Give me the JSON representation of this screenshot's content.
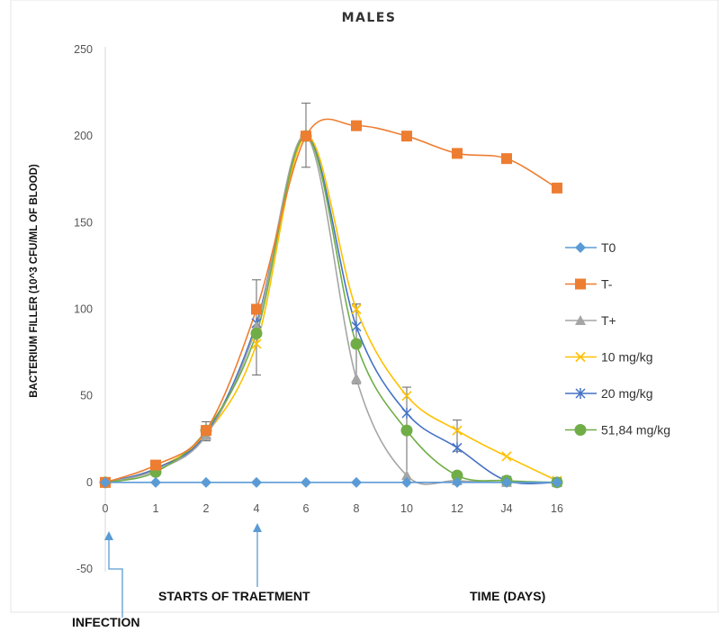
{
  "chart_data": {
    "type": "line",
    "title": "MALES",
    "ylabel": "BACTERIUM FILLER  (10^3 CFU/ML OF BLOOD)",
    "xlabel": "TIME (DAYS)",
    "ylim": [
      -50,
      250
    ],
    "y_ticks": [
      -50,
      0,
      50,
      100,
      150,
      200,
      250
    ],
    "x_ticks": [
      0,
      1,
      2,
      4,
      6,
      8,
      10,
      12,
      14,
      16
    ],
    "x_tick_labels": [
      "0",
      "1",
      "2",
      "4",
      "6",
      "8",
      "10",
      "12",
      "J4",
      "16"
    ],
    "grid": false,
    "legend_position": "right",
    "annotations": {
      "treatment": "STARTS OF TRAETMENT",
      "infection": "INFECTION",
      "treatment_day": 4,
      "infection_day": 0
    },
    "series": [
      {
        "name": "T0",
        "color": "#5b9bd5",
        "marker": "diamond",
        "x": [
          0,
          1,
          2,
          4,
          6,
          8,
          10,
          12,
          14,
          16
        ],
        "values": [
          0,
          0,
          0,
          0,
          0,
          0,
          0,
          0,
          0,
          0
        ]
      },
      {
        "name": "T-",
        "color": "#ed7d31",
        "marker": "square",
        "x": [
          0,
          1,
          2,
          4,
          6,
          8,
          10,
          12,
          14,
          16
        ],
        "values": [
          0,
          10,
          30,
          100,
          200,
          206,
          200,
          190,
          187,
          170
        ]
      },
      {
        "name": "T+",
        "color": "#a5a5a5",
        "marker": "triangle",
        "x": [
          0,
          1,
          2,
          4,
          6,
          8,
          10,
          12,
          14,
          16
        ],
        "values": [
          0,
          7,
          27,
          90,
          200,
          60,
          4,
          1,
          0,
          0
        ]
      },
      {
        "name": "10 mg/kg",
        "color": "#ffc000",
        "marker": "x",
        "x": [
          0,
          1,
          2,
          4,
          6,
          8,
          10,
          12,
          14,
          16
        ],
        "values": [
          0,
          8,
          28,
          80,
          200,
          100,
          50,
          30,
          15,
          1
        ]
      },
      {
        "name": "20 mg/kg",
        "color": "#4472c4",
        "marker": "star",
        "x": [
          0,
          1,
          2,
          4,
          6,
          8,
          10,
          12,
          14,
          16
        ],
        "values": [
          0,
          8,
          28,
          92,
          200,
          90,
          40,
          20,
          1,
          0
        ]
      },
      {
        "name": "51,84 mg/kg",
        "color": "#70ad47",
        "marker": "circle",
        "x": [
          0,
          1,
          2,
          4,
          6,
          8,
          10,
          12,
          14,
          16
        ],
        "values": [
          0,
          6,
          30,
          86,
          200,
          80,
          30,
          4,
          1,
          0
        ]
      }
    ],
    "error_bars": [
      {
        "x": 1,
        "low": 5,
        "high": 12
      },
      {
        "x": 2,
        "low": 24,
        "high": 35
      },
      {
        "x": 4,
        "low": 62,
        "high": 117
      },
      {
        "x": 6,
        "low": 182,
        "high": 219
      },
      {
        "x": 8,
        "low": 57,
        "high": 103
      },
      {
        "x": 10,
        "low": 0,
        "high": 55
      },
      {
        "x": 12,
        "low": 18,
        "high": 36
      }
    ]
  }
}
